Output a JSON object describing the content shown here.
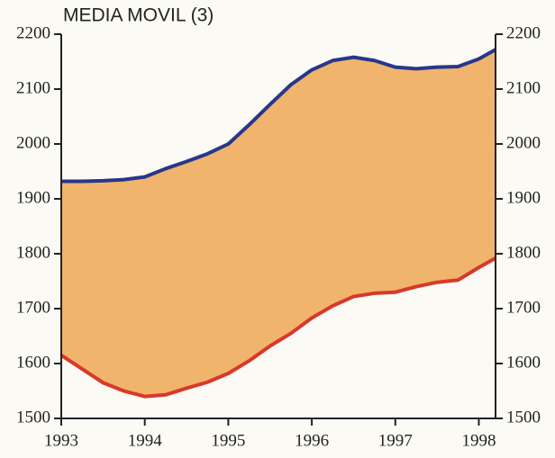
{
  "chart_data": {
    "type": "band",
    "title": "MEDIA MOVIL (3)",
    "x": [
      1993,
      1993.25,
      1993.5,
      1993.75,
      1994,
      1994.25,
      1994.5,
      1994.75,
      1995,
      1995.25,
      1995.5,
      1995.75,
      1996,
      1996.25,
      1996.5,
      1996.75,
      1997,
      1997.25,
      1997.5,
      1997.75,
      1998,
      1998.2
    ],
    "series": [
      {
        "color": "#27378a",
        "values": [
          1932,
          1932,
          1933,
          1935,
          1940,
          1955,
          1968,
          1982,
          2000,
          2035,
          2072,
          2108,
          2135,
          2152,
          2158,
          2152,
          2140,
          2137,
          2140,
          2141,
          2155,
          2172
        ]
      },
      {
        "color": "#d8382a",
        "values": [
          1615,
          1590,
          1565,
          1550,
          1540,
          1543,
          1555,
          1566,
          1582,
          1605,
          1632,
          1655,
          1683,
          1705,
          1722,
          1728,
          1730,
          1740,
          1748,
          1752,
          1775,
          1792
        ]
      }
    ],
    "fill_color": "#f0b46c",
    "xlim": [
      1993,
      1998.2
    ],
    "xticks": [
      1993,
      1994,
      1995,
      1996,
      1997,
      1998
    ],
    "ylim": [
      1500,
      2200
    ],
    "yticks": [
      1500,
      1600,
      1700,
      1800,
      1900,
      2000,
      2100,
      2200
    ],
    "right_axis": true
  }
}
